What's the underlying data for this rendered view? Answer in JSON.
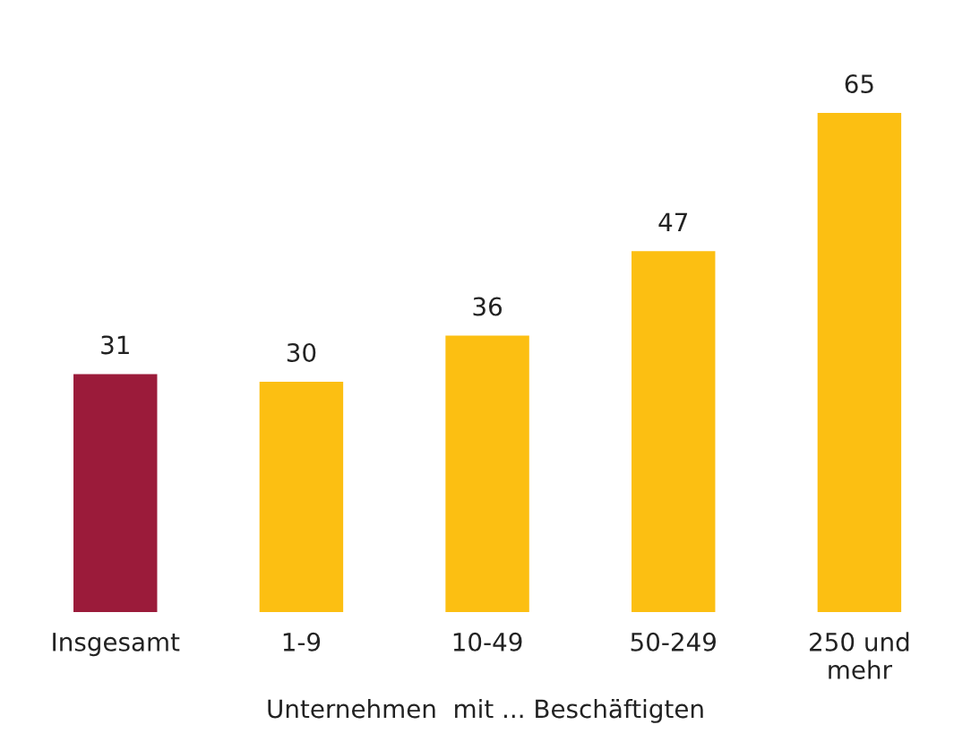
{
  "chart_data": {
    "type": "bar",
    "xlabel": "Unternehmen  mit ... Beschäftigten",
    "categories": [
      "Insgesamt",
      "1-9",
      "10-49",
      "50-249",
      "250 und\nmehr"
    ],
    "values": [
      31,
      30,
      36,
      47,
      65
    ],
    "colors": [
      "#9b1b3a",
      "#fcbf12",
      "#fcbf12",
      "#fcbf12",
      "#fcbf12"
    ],
    "data_labels": true
  }
}
